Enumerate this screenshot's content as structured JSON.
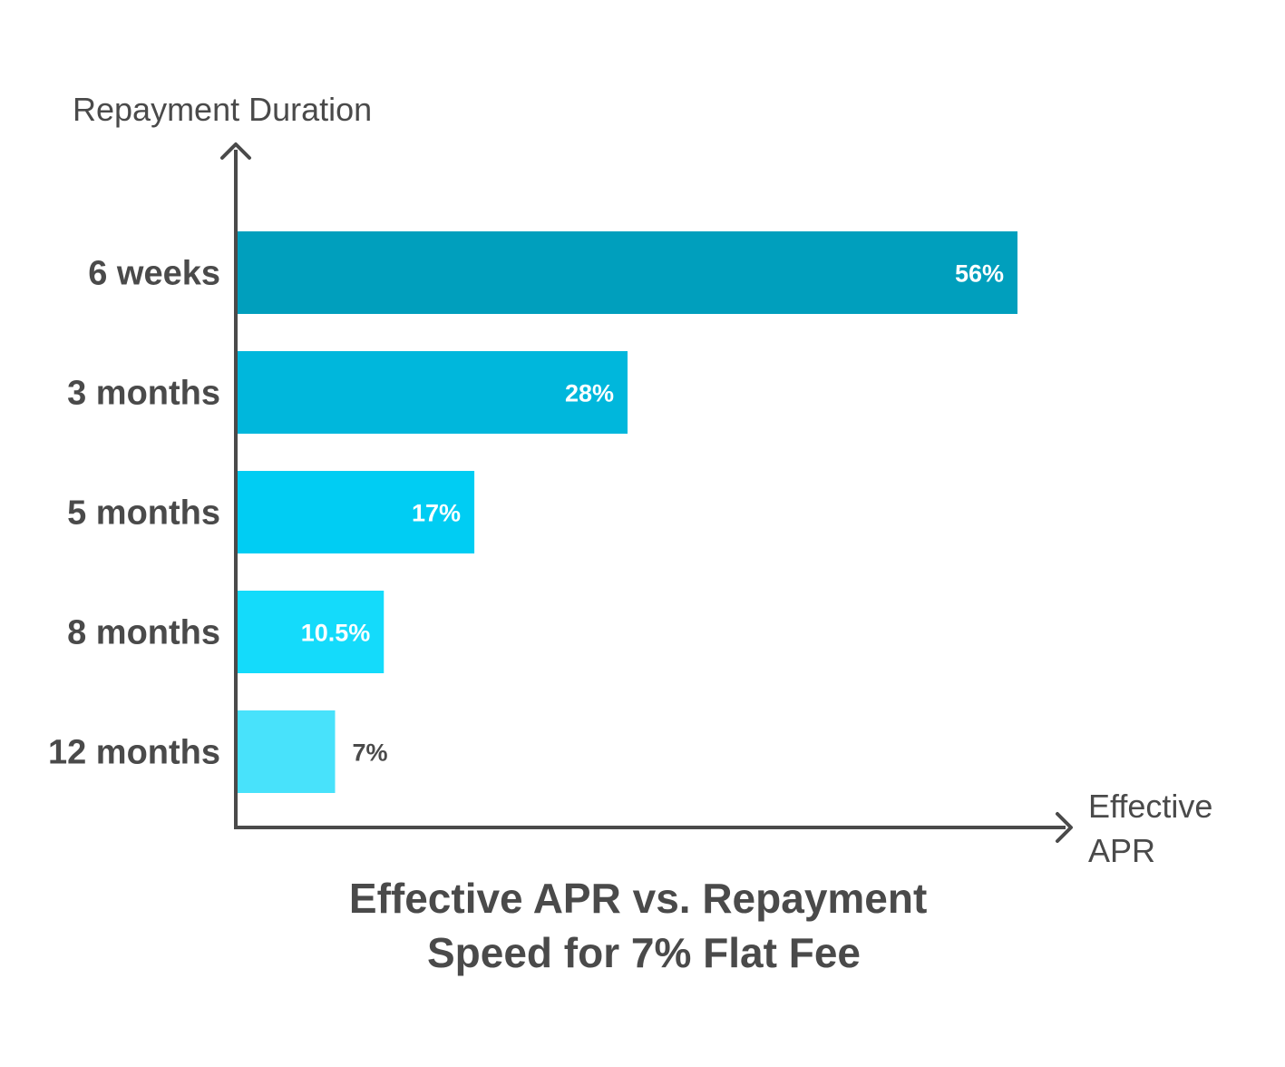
{
  "chart_data": {
    "type": "bar",
    "orientation": "horizontal",
    "title_lines": [
      "Effective APR vs. Repayment",
      "Speed for 7% Flat Fee"
    ],
    "ylabel": "Repayment Duration",
    "xlabel_lines": [
      "Effective",
      "APR"
    ],
    "categories": [
      "6 weeks",
      "3 months",
      "5 months",
      "8 months",
      "12 months"
    ],
    "values": [
      56,
      28,
      17,
      10.5,
      7
    ],
    "value_labels": [
      "56%",
      "28%",
      "17%",
      "10.5%",
      "7%"
    ],
    "colors": [
      "#009fbd",
      "#00b7dc",
      "#00cdf3",
      "#14dbfb",
      "#48e2fb"
    ],
    "xlim": [
      0,
      56
    ],
    "grid": false,
    "legend": "none"
  }
}
